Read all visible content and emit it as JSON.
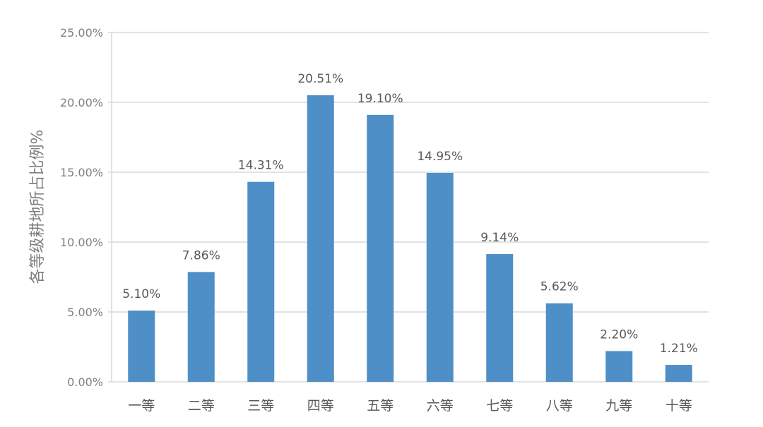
{
  "chart_data": {
    "type": "bar",
    "title": "",
    "xlabel": "",
    "ylabel": "各等级耕地所占比例%",
    "categories": [
      "一等",
      "二等",
      "三等",
      "四等",
      "五等",
      "六等",
      "七等",
      "八等",
      "九等",
      "十等"
    ],
    "values": [
      5.1,
      7.86,
      14.31,
      20.51,
      19.1,
      14.95,
      9.14,
      5.62,
      2.2,
      1.21
    ],
    "data_labels": [
      "5.10%",
      "7.86%",
      "14.31%",
      "20.51%",
      "19.10%",
      "14.95%",
      "9.14%",
      "5.62%",
      "2.20%",
      "1.21%"
    ],
    "ylim": [
      0,
      25
    ],
    "yticks": [
      0,
      5,
      10,
      15,
      20,
      25
    ],
    "ytick_labels": [
      "0.00%",
      "5.00%",
      "10.00%",
      "15.00%",
      "20.00%",
      "25.00%"
    ],
    "grid": true,
    "legend": "none",
    "bar_color": "#4f8fc8",
    "grid_color": "#d9d9d9"
  }
}
